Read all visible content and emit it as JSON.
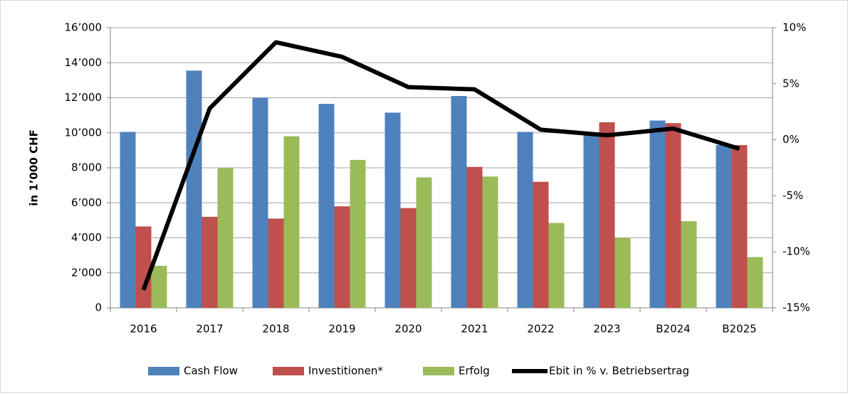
{
  "chart_data": {
    "type": "bar",
    "y_axis_label": "in 1’000 CHF",
    "categories": [
      "2016",
      "2017",
      "2018",
      "2019",
      "2020",
      "2021",
      "2022",
      "2023",
      "B2024",
      "B2025"
    ],
    "series": [
      {
        "name": "Cash Flow",
        "color": "#4f81bd",
        "values": [
          10050,
          13550,
          12000,
          11650,
          11150,
          12100,
          10050,
          9900,
          10700,
          9300
        ]
      },
      {
        "name": "Investitionen*",
        "color": "#c0504d",
        "values": [
          4650,
          5200,
          5100,
          5800,
          5700,
          8050,
          7200,
          10600,
          10550,
          9300
        ]
      },
      {
        "name": "Erfolg",
        "color": "#9bbb59",
        "values": [
          2400,
          8000,
          9800,
          8450,
          7450,
          7500,
          4850,
          4000,
          4950,
          2900
        ]
      },
      {
        "name": "Ebit in % v. Betriebsertrag",
        "color": "#000000",
        "type": "line",
        "axis": "y2",
        "values": [
          -13.4,
          2.8,
          8.7,
          7.4,
          4.7,
          4.5,
          0.9,
          0.4,
          1.0,
          -0.8
        ]
      }
    ],
    "ylim": [
      0,
      16000
    ],
    "yticks": [
      0,
      {
        "value": 2000,
        "label": "2’000"
      },
      {
        "value": 4000,
        "label": "4’000"
      },
      {
        "value": 6000,
        "label": "6’000"
      },
      {
        "value": 8000,
        "label": "8’000"
      },
      {
        "value": 10000,
        "label": "10’000"
      },
      {
        "value": 12000,
        "label": "12’000"
      },
      {
        "value": 14000,
        "label": "14’000"
      },
      {
        "value": 16000,
        "label": "16’000"
      }
    ],
    "y2lim": [
      -15,
      10
    ],
    "y2ticks": [
      {
        "value": -15,
        "label": "-15%"
      },
      {
        "value": -10,
        "label": "-10%"
      },
      {
        "value": -5,
        "label": "-5%"
      },
      {
        "value": 0,
        "label": "0%"
      },
      {
        "value": 5,
        "label": "5%"
      },
      {
        "value": 10,
        "label": "10%"
      }
    ],
    "grid": true,
    "legend": "bottom"
  }
}
